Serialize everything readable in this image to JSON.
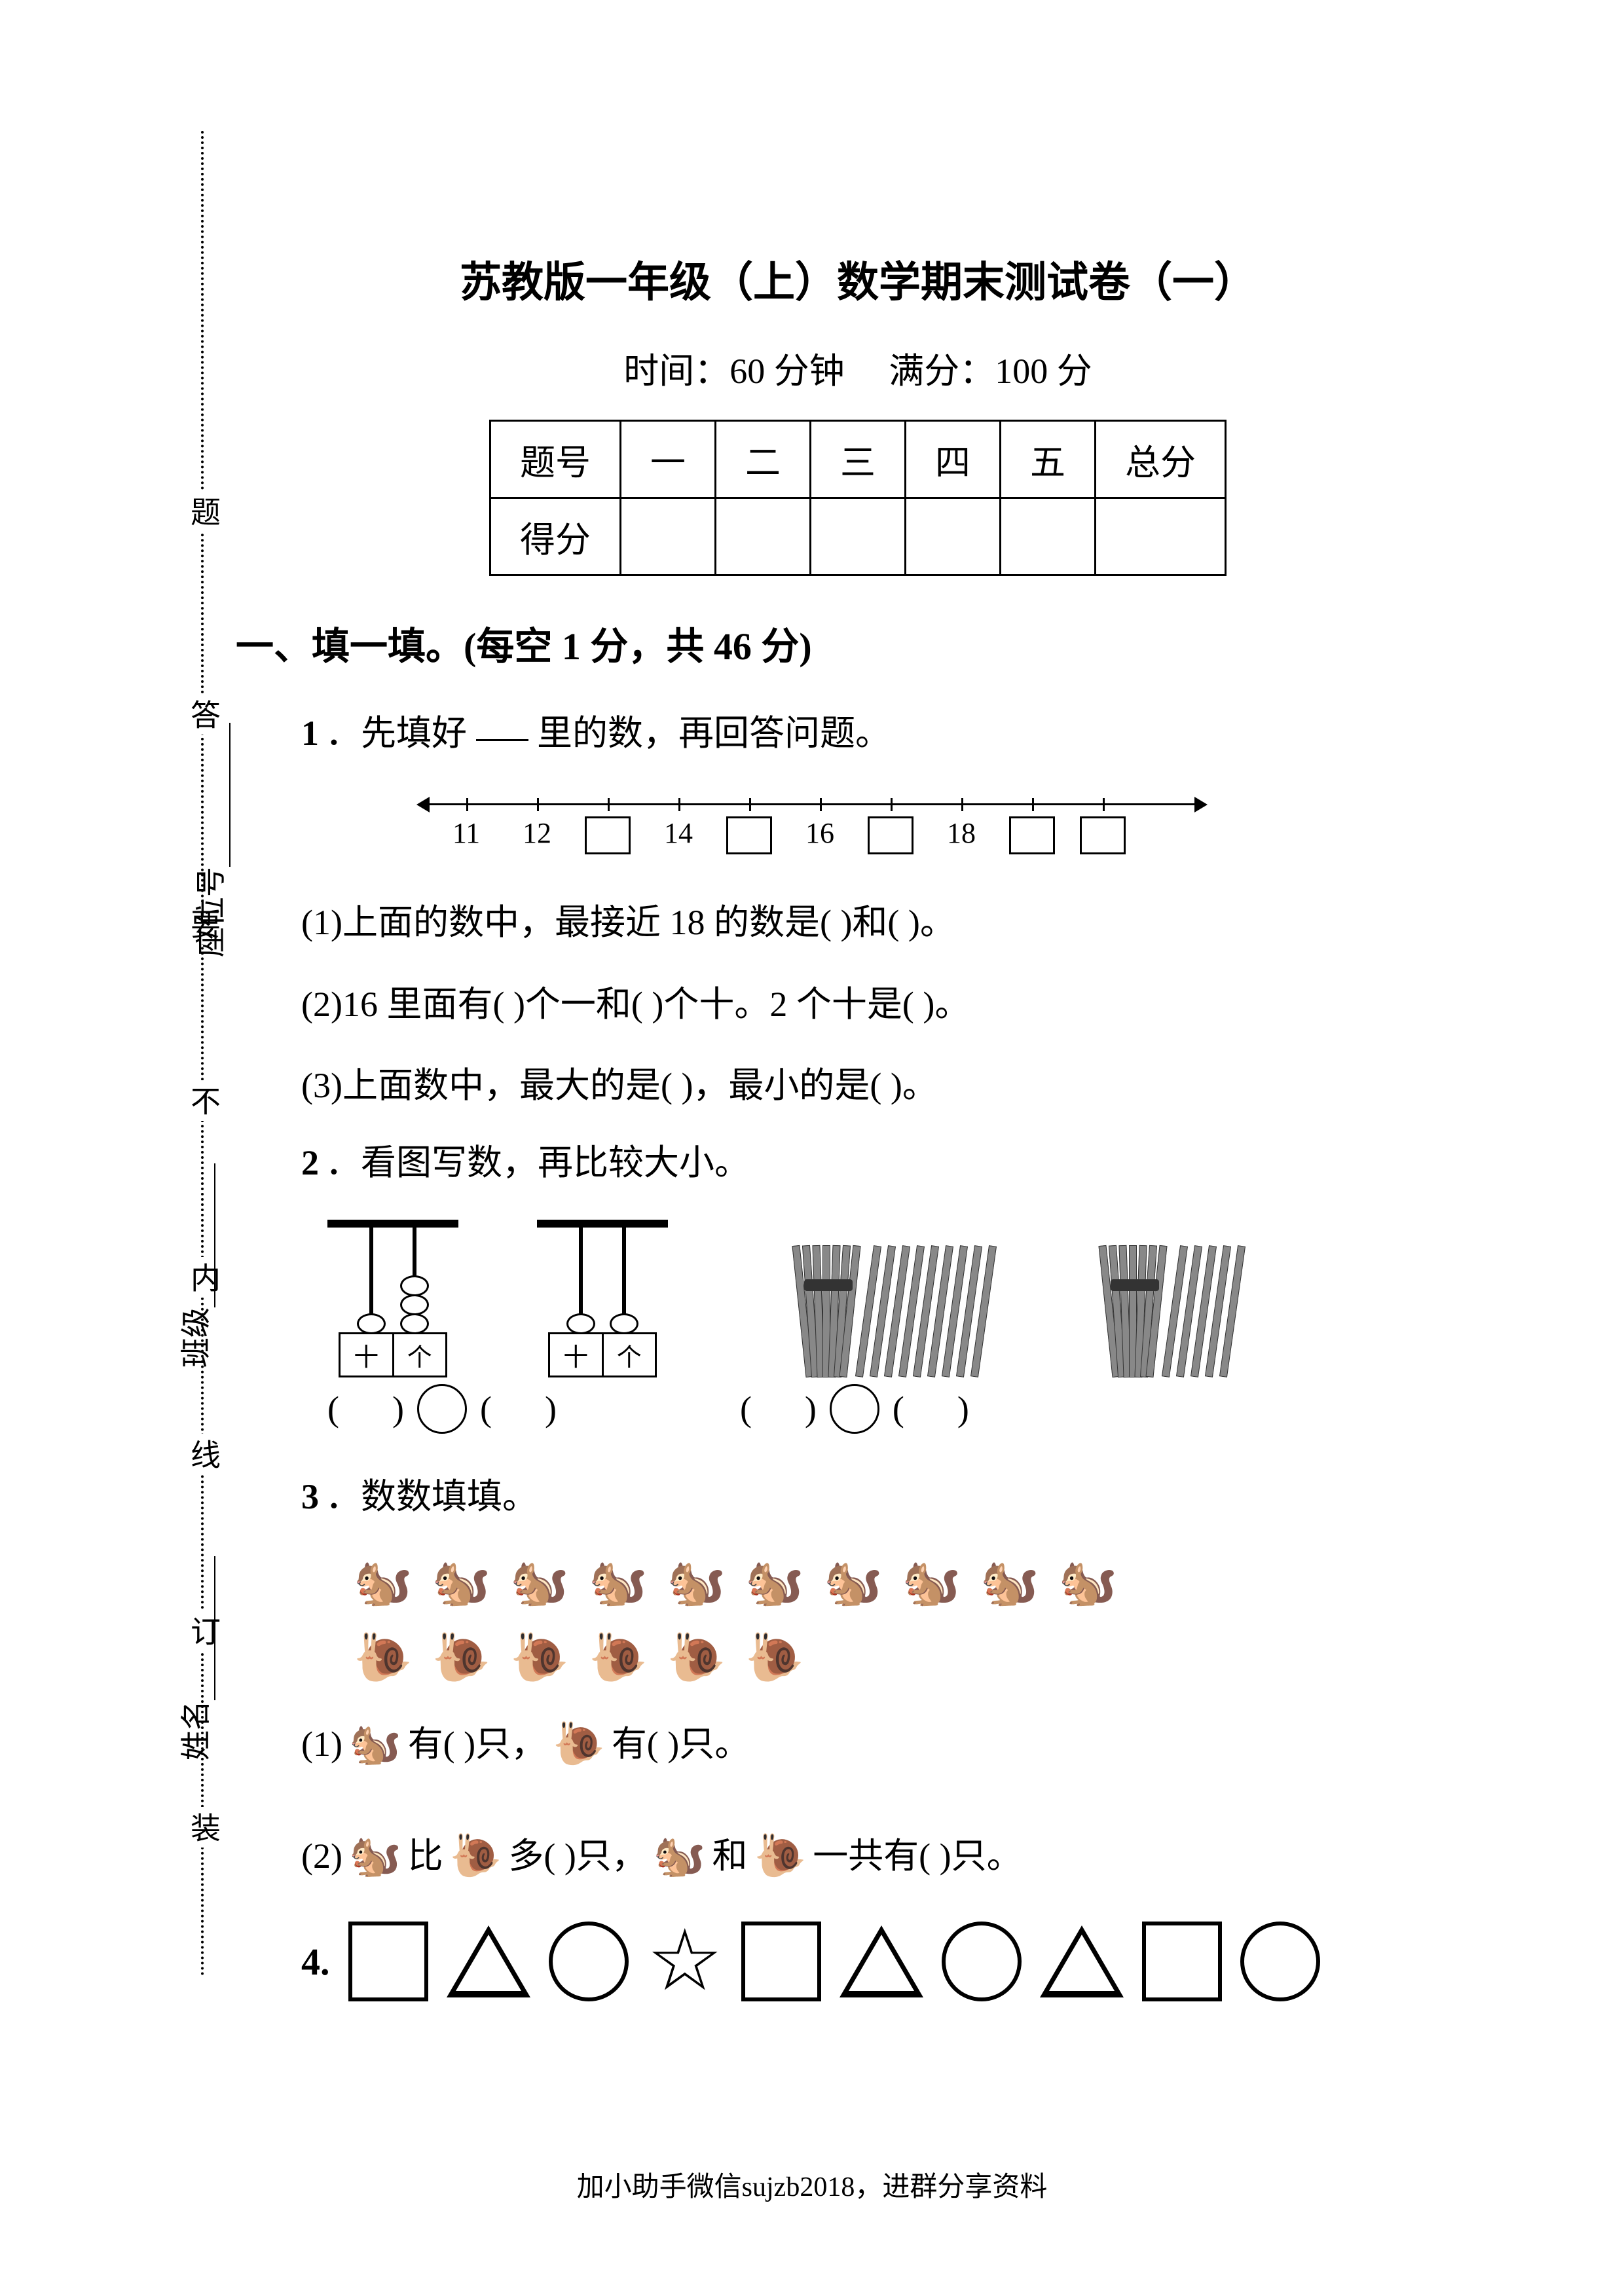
{
  "title": "苏教版一年级（上）数学期末测试卷（一）",
  "subheader": {
    "time_label": "时间：",
    "time_value": "60 分钟",
    "full_label": "满分：",
    "full_value": "100 分"
  },
  "score_table": {
    "row1": [
      "题号",
      "一",
      "二",
      "三",
      "四",
      "五",
      "总分"
    ],
    "row2_label": "得分"
  },
  "sidebar": {
    "fields": [
      "姓名",
      "班级",
      "座位号"
    ],
    "markers": [
      "装",
      "订",
      "线",
      "内",
      "不",
      "要",
      "答",
      "题"
    ]
  },
  "section1": {
    "heading": "一、填一填。(每空 1 分，共 46 分)"
  },
  "q1": {
    "stem": "．先填好          里的数，再回答问题。",
    "num": "1",
    "numberline": {
      "labels": [
        "11",
        "12",
        "14",
        "16",
        "18"
      ],
      "boxesAfter": [
        12,
        14,
        16,
        18,
        18
      ],
      "start": 11,
      "end": 20
    },
    "p1": "(1)上面的数中，最接近 18 的数是(          )和(          )。",
    "p2": "(2)16 里面有(          )个一和(          )个十。2 个十是(          )。",
    "p3": "(3)上面数中，最大的是(          )，最小的是(          )。"
  },
  "q2": {
    "num": "2",
    "stem": "．看图写数，再比较大小。",
    "abacus1": {
      "tens_beads": 1,
      "ones_beads": 3,
      "labels": [
        "十",
        "个"
      ]
    },
    "abacus2": {
      "tens_beads": 1,
      "ones_beads": 1,
      "labels": [
        "十",
        "个"
      ]
    },
    "sticks1": {
      "bundles": 1,
      "loose": 9
    },
    "sticks2": {
      "bundles": 1,
      "loose": 5
    }
  },
  "q3": {
    "num": "3",
    "stem": "．数数填填。",
    "squirrel_count": 10,
    "snail_count": 6,
    "p1_pre": "(1)",
    "p1_a": "有(          )只，",
    "p1_b": "有(          )只。",
    "p2_pre": "(2)",
    "p2_a": "比",
    "p2_b": "多(          )只，",
    "p2_c": "和",
    "p2_d": "一共有(          )只。"
  },
  "q4": {
    "num": "4.",
    "shapes": [
      "square",
      "triangle",
      "circle",
      "star",
      "square",
      "triangle",
      "circle",
      "triangle",
      "square",
      "circle"
    ]
  },
  "footer": "加小助手微信sujzb2018，进群分享资料",
  "colors": {
    "fg": "#000000",
    "bg": "#ffffff",
    "stick": "#888888"
  }
}
